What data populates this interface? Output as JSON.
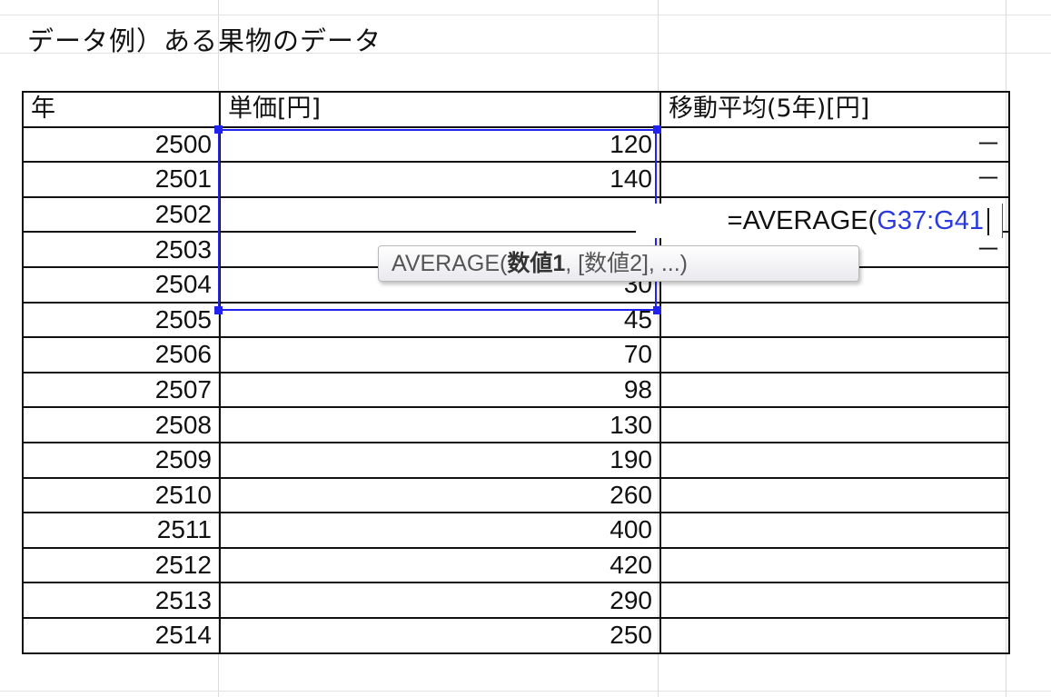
{
  "title": "データ例）ある果物のデータ",
  "table": {
    "headers": [
      "年",
      "単価[円]",
      "移動平均(5年)[円]"
    ],
    "rows": [
      {
        "year": "2500",
        "price": "120",
        "avg": "－"
      },
      {
        "year": "2501",
        "price": "140",
        "avg": "－"
      },
      {
        "year": "2502",
        "price": "",
        "avg": ""
      },
      {
        "year": "2503",
        "price": "",
        "avg": "－"
      },
      {
        "year": "2504",
        "price": "30",
        "avg": ""
      },
      {
        "year": "2505",
        "price": "45",
        "avg": ""
      },
      {
        "year": "2506",
        "price": "70",
        "avg": ""
      },
      {
        "year": "2507",
        "price": "98",
        "avg": ""
      },
      {
        "year": "2508",
        "price": "130",
        "avg": ""
      },
      {
        "year": "2509",
        "price": "190",
        "avg": ""
      },
      {
        "year": "2510",
        "price": "260",
        "avg": ""
      },
      {
        "year": "2511",
        "price": "400",
        "avg": ""
      },
      {
        "year": "2512",
        "price": "420",
        "avg": ""
      },
      {
        "year": "2513",
        "price": "290",
        "avg": ""
      },
      {
        "year": "2514",
        "price": "250",
        "avg": ""
      }
    ]
  },
  "formula_edit": {
    "prefix": "=AVERAGE(",
    "range_ref": "G37:G41"
  },
  "tooltip": {
    "func": "AVERAGE(",
    "arg1": "数値1",
    "rest": ", [数値2], ...)"
  },
  "colors": {
    "selection": "#2222ee",
    "range_ref": "#2a3ae0"
  }
}
